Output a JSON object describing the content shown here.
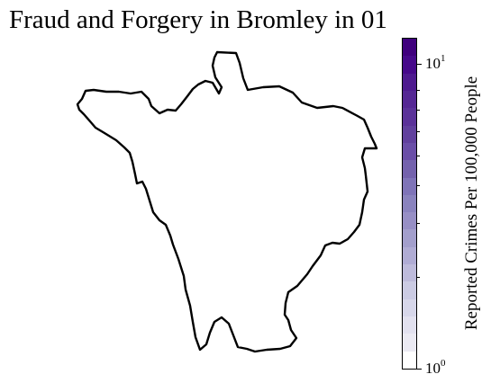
{
  "title": "Fraud and Forgery in Bromley in 01",
  "map": {
    "region": "Bromley",
    "fill": "#ffffff",
    "stroke": "#000000"
  },
  "colorbar": {
    "label": "Reported Crimes Per 100,000 People",
    "scale": "log",
    "min": 1,
    "max": 12,
    "ticks": [
      {
        "base": "10",
        "exp": "0",
        "value": 1
      },
      {
        "base": "10",
        "exp": "1",
        "value": 10
      }
    ],
    "colors": [
      "#3f007d",
      "#46098a",
      "#4e1a8f",
      "#552794",
      "#5b3299",
      "#61409d",
      "#6a4ea7",
      "#7462ad",
      "#7f74b8",
      "#8a83be",
      "#978fc5",
      "#a39fcc",
      "#b0acd4",
      "#bebbdb",
      "#cbcbe3",
      "#d7d7ea",
      "#e2e1ef",
      "#ebeaf3",
      "#ffffff"
    ]
  }
}
